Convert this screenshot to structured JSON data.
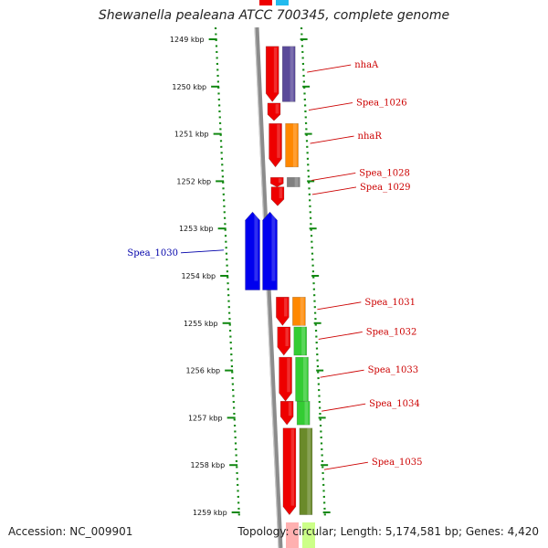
{
  "title": "Shewanella pealeana ATCC 700345, complete genome",
  "footer": {
    "accession": "Accession: NC_009901",
    "summary": "Topology: circular; Length: 5,174,581 bp; Genes: 4,420"
  },
  "colors": {
    "forward_cds": "#ee0000",
    "reverse_cds": "#0000ee",
    "backbone": "#8c8c8c",
    "ruler": "#118811",
    "label_forward": "#cc0000",
    "label_reverse": "#0000aa"
  },
  "ruler": {
    "unit": "kbp",
    "ticks": [
      {
        "kbp": 1249,
        "label": "1249 kbp"
      },
      {
        "kbp": 1250,
        "label": "1250 kbp"
      },
      {
        "kbp": 1251,
        "label": "1251 kbp"
      },
      {
        "kbp": 1252,
        "label": "1252 kbp"
      },
      {
        "kbp": 1253,
        "label": "1253 kbp"
      },
      {
        "kbp": 1254,
        "label": "1254 kbp"
      },
      {
        "kbp": 1255,
        "label": "1255 kbp"
      },
      {
        "kbp": 1256,
        "label": "1256 kbp"
      },
      {
        "kbp": 1257,
        "label": "1257 kbp"
      },
      {
        "kbp": 1258,
        "label": "1258 kbp"
      },
      {
        "kbp": 1259,
        "label": "1259 kbp"
      }
    ]
  },
  "genes": [
    {
      "start": 1249.15,
      "end": 1250.32,
      "strand": "+",
      "label": "nhaA",
      "cog_color": "#5a4a9a"
    },
    {
      "start": 1250.35,
      "end": 1250.72,
      "strand": "+",
      "label": "Spea_1026",
      "cog_color": ""
    },
    {
      "start": 1250.78,
      "end": 1251.7,
      "strand": "+",
      "label": "nhaR",
      "cog_color": "#ff8800"
    },
    {
      "start": 1251.92,
      "end": 1252.12,
      "strand": "+",
      "label": "Spea_1028",
      "cog_color": "#808080"
    },
    {
      "start": 1252.12,
      "end": 1252.52,
      "strand": "+",
      "label": "Spea_1029",
      "cog_color": ""
    },
    {
      "start": 1252.65,
      "end": 1254.3,
      "strand": "-",
      "label": "Spea_1030",
      "cog_color": ""
    },
    {
      "start": 1254.45,
      "end": 1255.05,
      "strand": "+",
      "label": "Spea_1031",
      "cog_color": "#ff8800"
    },
    {
      "start": 1255.08,
      "end": 1255.68,
      "strand": "+",
      "label": "Spea_1032",
      "cog_color": "#33cc33"
    },
    {
      "start": 1255.72,
      "end": 1256.65,
      "strand": "+",
      "label": "Spea_1033",
      "cog_color": "#33cc33"
    },
    {
      "start": 1256.65,
      "end": 1257.15,
      "strand": "+",
      "label": "Spea_1034",
      "cog_color": "#33cc33"
    },
    {
      "start": 1257.22,
      "end": 1259.05,
      "strand": "+",
      "label": "Spea_1035",
      "cog_color": "#6a8a2a"
    }
  ]
}
